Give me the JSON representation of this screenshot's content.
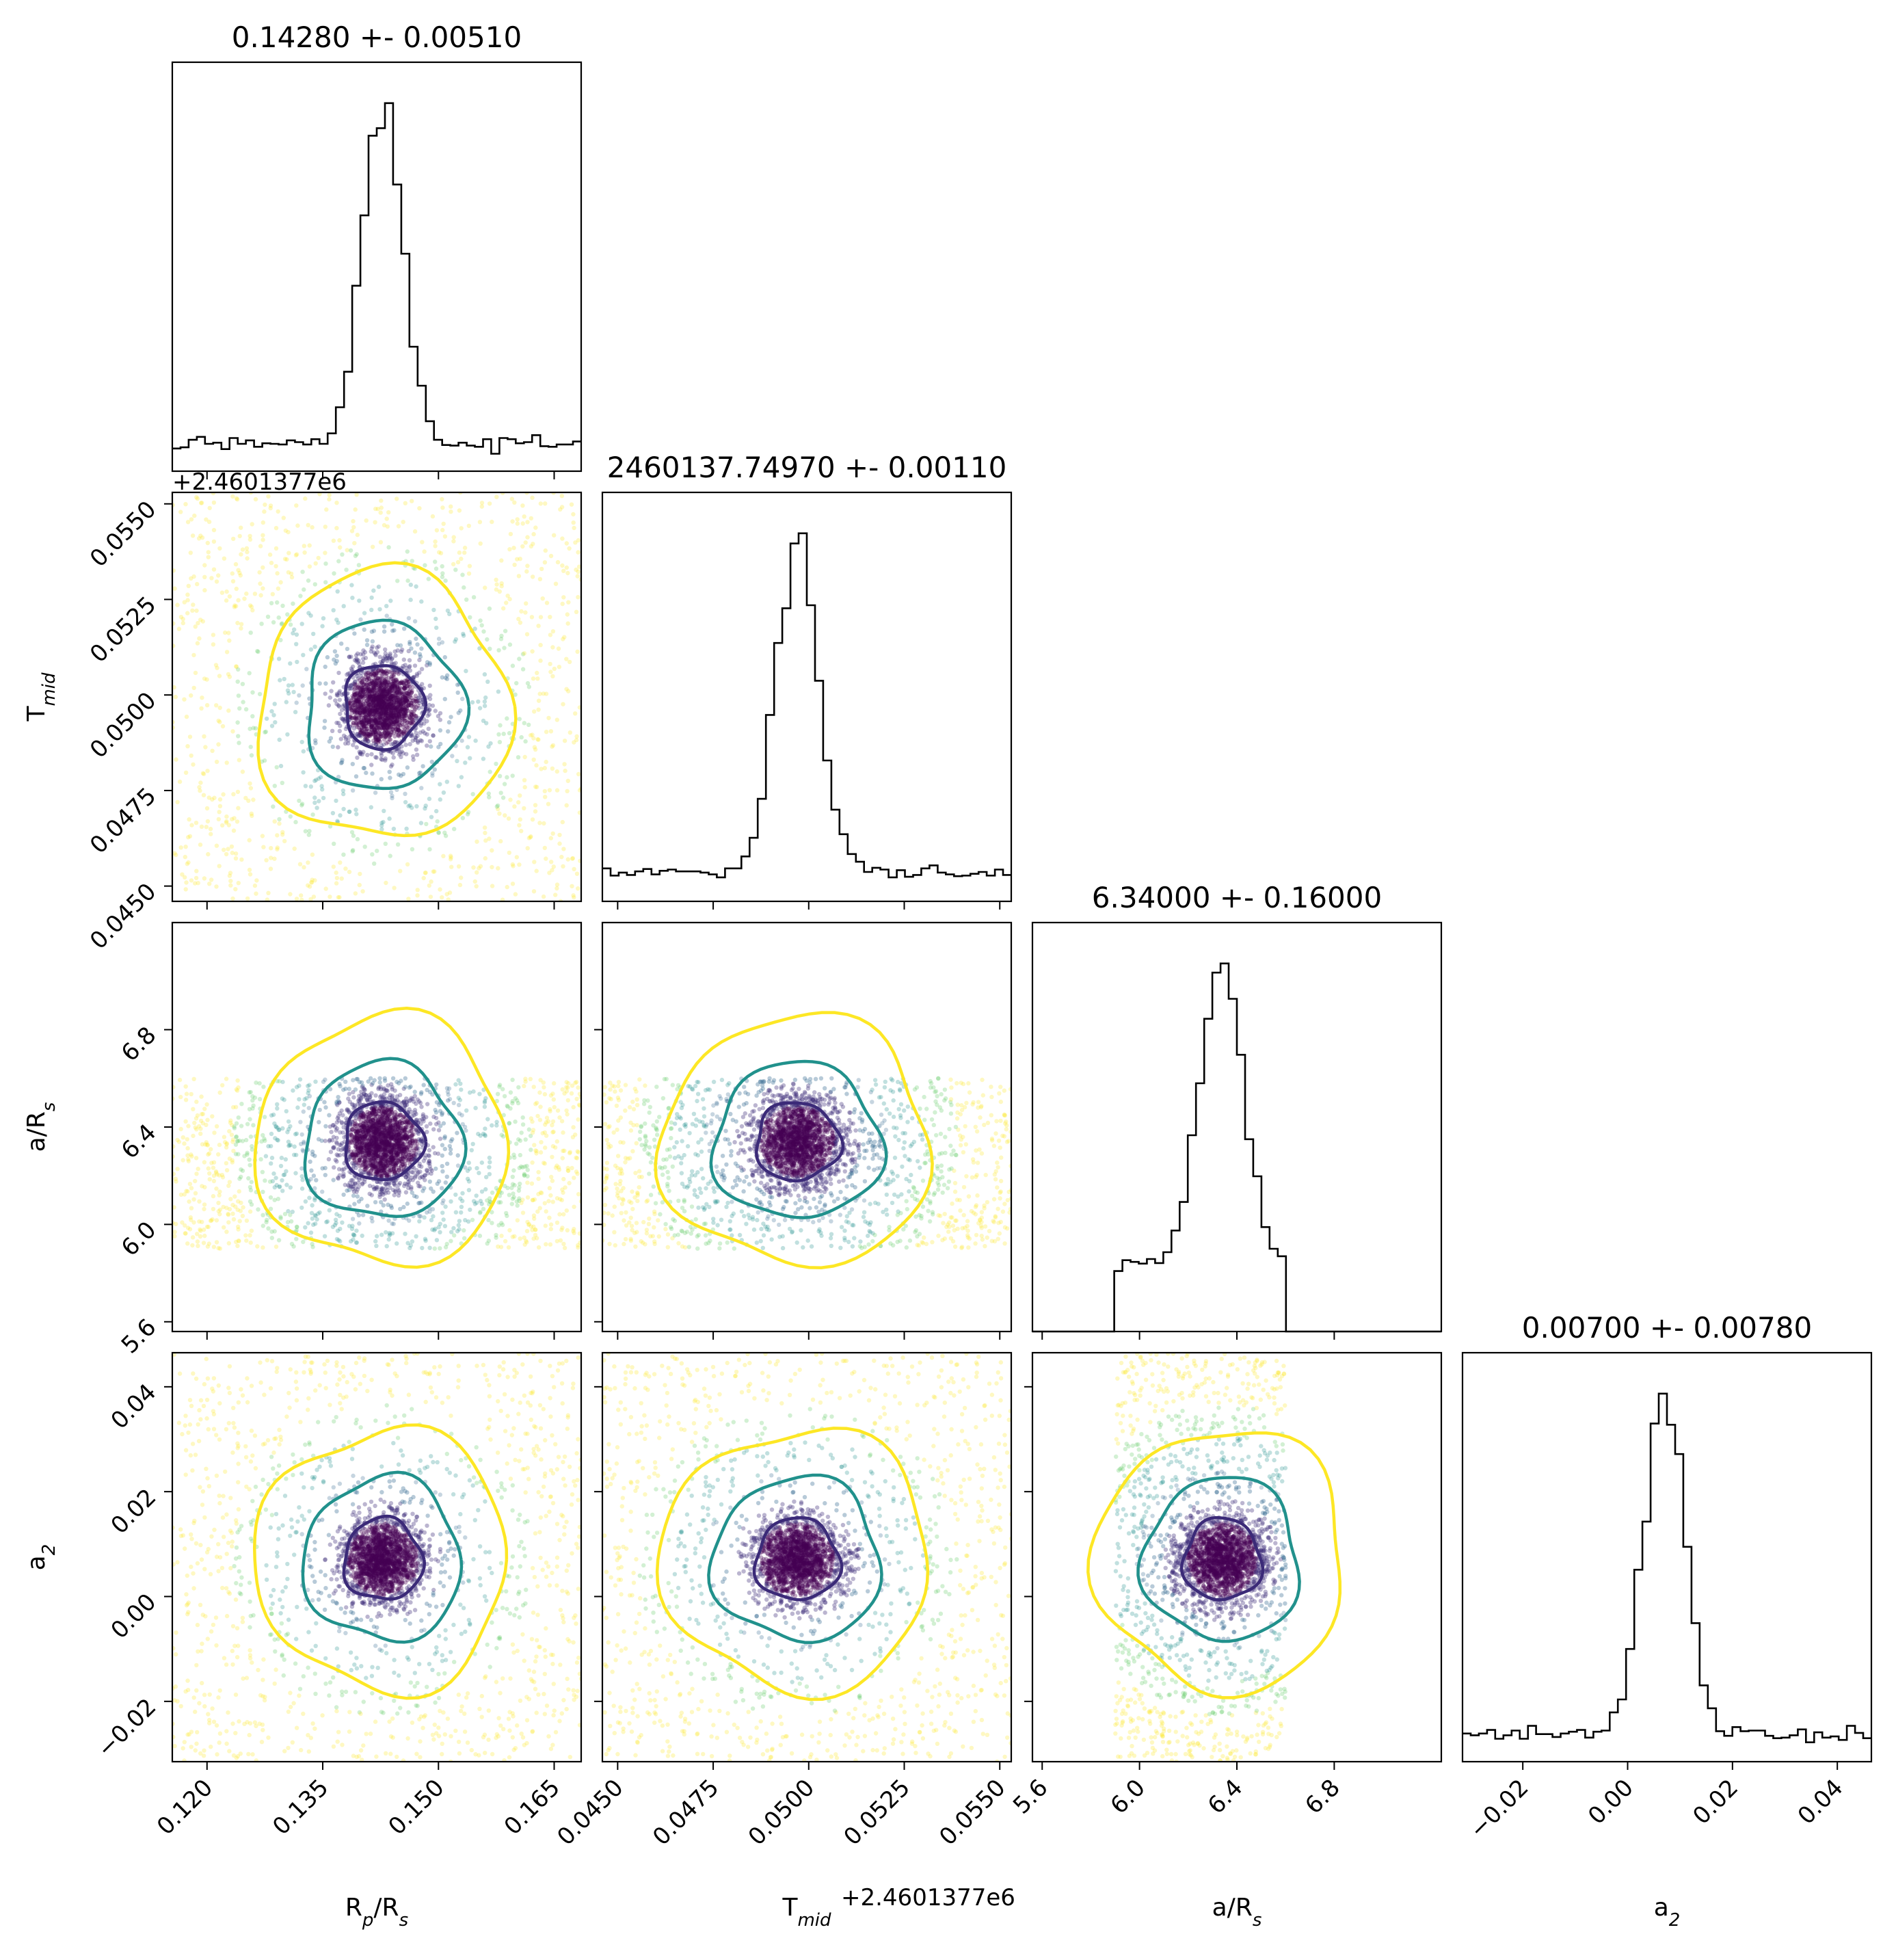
{
  "chart_data": {
    "type": "scatter",
    "subtype": "corner-plot",
    "parameters": [
      {
        "key": "rp",
        "label": "R",
        "sub": "p",
        "label_tail": "/R",
        "sub2": "s",
        "range": [
          0.1155,
          0.1685
        ],
        "ticks": [
          0.12,
          0.135,
          0.15,
          0.165
        ],
        "tick_labels": [
          "0.120",
          "0.135",
          "0.150",
          "0.165"
        ],
        "mean": 0.1428,
        "sigma": 0.0051
      },
      {
        "key": "tmid",
        "label": "T",
        "sub": "mid",
        "label_tail": "",
        "sub2": "",
        "range": [
          0.0446,
          0.0553
        ],
        "ticks": [
          0.045,
          0.0475,
          0.05,
          0.0525,
          0.055
        ],
        "tick_labels": [
          "0.0450",
          "0.0475",
          "0.0500",
          "0.0525",
          "0.0550"
        ],
        "mean": 0.0497,
        "sigma": 0.0011,
        "offset_label": "+2.4601377e6"
      },
      {
        "key": "ars",
        "label": "a/R",
        "sub": "s",
        "label_tail": "",
        "sub2": "",
        "range": [
          5.56,
          7.24
        ],
        "ticks": [
          5.6,
          6.0,
          6.4,
          6.8
        ],
        "tick_labels": [
          "5.6",
          "6.0",
          "6.4",
          "6.8"
        ],
        "mean": 6.34,
        "sigma": 0.16,
        "uniform_bounds": [
          5.9,
          6.6
        ]
      },
      {
        "key": "a2",
        "label": "a",
        "sub": "2",
        "label_tail": "",
        "sub2": "",
        "range": [
          -0.0315,
          0.0465
        ],
        "ticks": [
          -0.02,
          0.0,
          0.02,
          0.04
        ],
        "tick_labels": [
          "−0.02",
          "0.00",
          "0.02",
          "0.04"
        ],
        "mean": 0.007,
        "sigma": 0.0078
      }
    ],
    "titles": [
      "0.14280 +- 0.00510",
      "2460137.74970 +- 0.00110",
      "6.34000 +- 0.16000",
      "0.00700 +- 0.00780"
    ],
    "samples": 6000,
    "contour_levels": [
      "1-sigma",
      "2-sigma",
      "3-sigma"
    ],
    "colors": {
      "inner": "#3b2a78",
      "middle": "#21918c",
      "outer": "#fde725",
      "hist": "#000000"
    },
    "grid": false,
    "legend": "none"
  }
}
